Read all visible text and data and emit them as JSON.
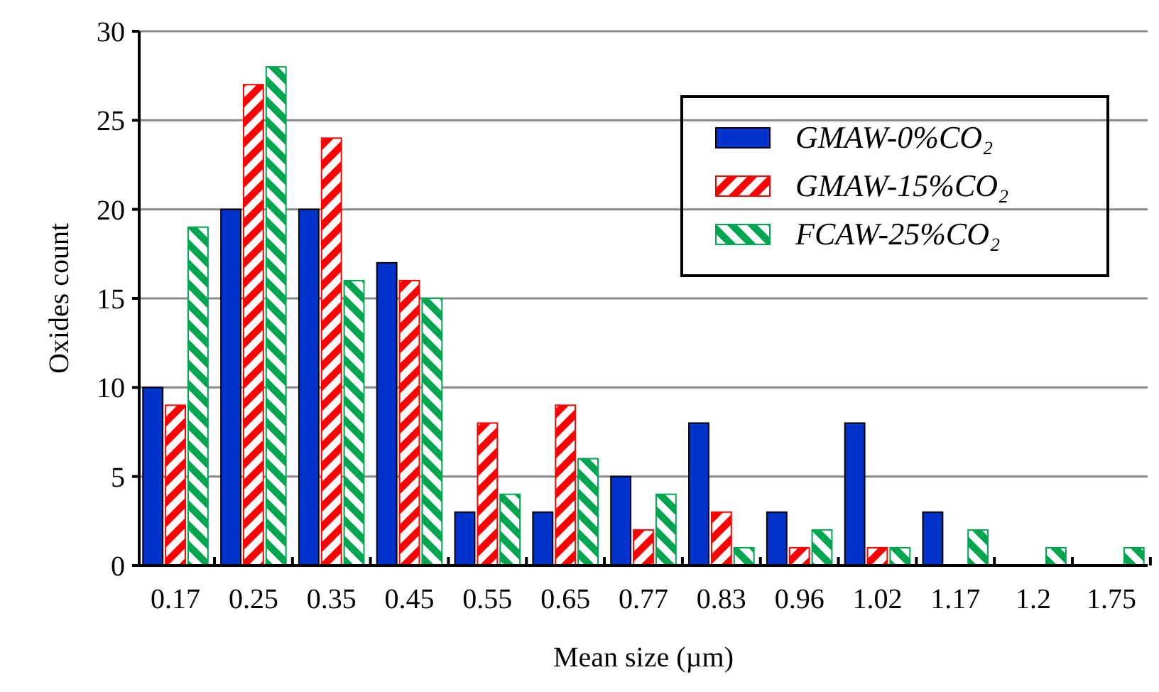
{
  "chart_data": {
    "type": "bar",
    "xlabel": "Mean size (µm)",
    "ylabel": "Oxides count",
    "categories": [
      "0.17",
      "0.25",
      "0.35",
      "0.45",
      "0.55",
      "0.65",
      "0.77",
      "0.83",
      "0.96",
      "1.02",
      "1.17",
      "1.2",
      "1.75"
    ],
    "series": [
      {
        "name": "GMAW-0%CO₂",
        "color": "#0033cc",
        "values": [
          10,
          20,
          20,
          17,
          3,
          3,
          5,
          8,
          3,
          8,
          3,
          0,
          0
        ]
      },
      {
        "name": "GMAW-15%CO₂",
        "color": "#ff0000",
        "values": [
          9,
          27,
          24,
          16,
          8,
          9,
          2,
          3,
          1,
          1,
          0,
          0,
          0
        ]
      },
      {
        "name": "FCAW-25%CO₂",
        "color": "#00a550",
        "values": [
          19,
          28,
          16,
          15,
          4,
          6,
          4,
          1,
          2,
          1,
          2,
          1,
          1
        ]
      }
    ],
    "ylim": [
      0,
      30
    ],
    "yticks": [
      0,
      5,
      10,
      15,
      20,
      25,
      30
    ],
    "grid": "y",
    "legend": "top right"
  }
}
